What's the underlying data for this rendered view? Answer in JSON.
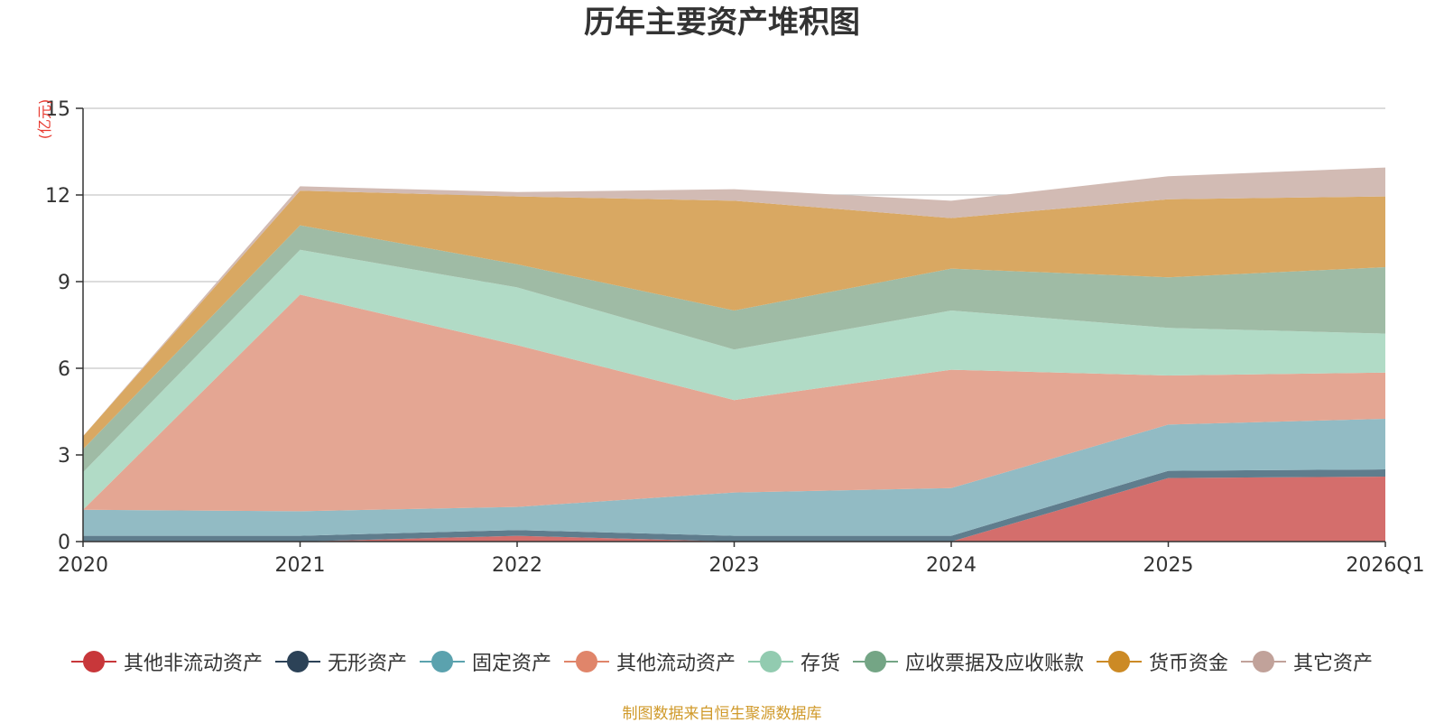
{
  "chart_data": {
    "type": "area",
    "stacked": true,
    "title": "历年主要资产堆积图",
    "unit_label": "(亿元)",
    "source": "制图数据来自恒生聚源数据库",
    "categories": [
      "2020",
      "2021",
      "2022",
      "2023",
      "2024",
      "2025",
      "2026Q1"
    ],
    "ylim": [
      0,
      15
    ],
    "yticks": [
      0,
      3,
      6,
      9,
      12,
      15
    ],
    "series": [
      {
        "name": "其他非流动资产",
        "color": "#c8373a",
        "fill": "#d46e6c",
        "values": [
          0.0,
          0.0,
          0.2,
          0.0,
          0.0,
          2.2,
          2.25
        ]
      },
      {
        "name": "无形资产",
        "color": "#2c4257",
        "fill": "#5f7d8d",
        "values": [
          0.2,
          0.2,
          0.2,
          0.2,
          0.2,
          0.25,
          0.25
        ]
      },
      {
        "name": "固定资产",
        "color": "#5ba2ae",
        "fill": "#92bbc4",
        "values": [
          0.9,
          0.85,
          0.8,
          1.5,
          1.65,
          1.6,
          1.75
        ]
      },
      {
        "name": "其他流动资产",
        "color": "#e0856a",
        "fill": "#e4a693",
        "values": [
          0.0,
          7.5,
          5.6,
          3.2,
          4.1,
          1.7,
          1.6
        ]
      },
      {
        "name": "存货",
        "color": "#92cbb0",
        "fill": "#b1dbc6",
        "values": [
          1.3,
          1.55,
          2.0,
          1.75,
          2.05,
          1.65,
          1.35
        ]
      },
      {
        "name": "应收票据及应收账款",
        "color": "#74a585",
        "fill": "#9fbba5",
        "values": [
          0.8,
          0.85,
          0.8,
          1.35,
          1.45,
          1.75,
          2.3
        ]
      },
      {
        "name": "货币资金",
        "color": "#cc8a25",
        "fill": "#d9a862",
        "values": [
          0.45,
          1.2,
          2.35,
          3.8,
          1.75,
          2.7,
          2.45
        ]
      },
      {
        "name": "其它资产",
        "color": "#c1a29a",
        "fill": "#d2bbb4",
        "values": [
          0.0,
          0.15,
          0.15,
          0.4,
          0.6,
          0.8,
          1.0
        ]
      }
    ]
  }
}
